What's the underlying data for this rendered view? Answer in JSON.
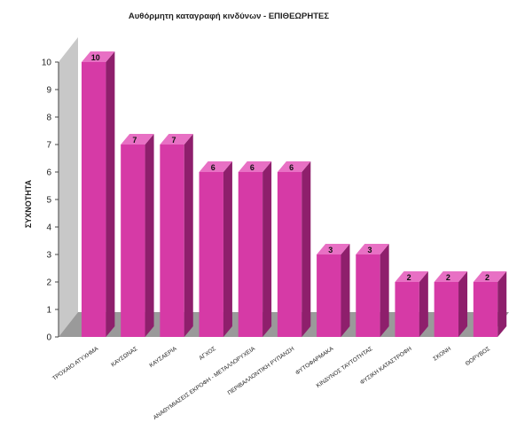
{
  "chart_data": {
    "type": "bar",
    "title": "Αυθόρμητη καταγραφή κινδύνων - ΕΠΙΘΕΩΡΗΤΕΣ",
    "xlabel": "",
    "ylabel": "ΣΥΧΝΟΤΗΤΑ",
    "ylim": [
      0,
      10
    ],
    "yticks": [
      0,
      1,
      2,
      3,
      4,
      5,
      6,
      7,
      8,
      9,
      10
    ],
    "categories": [
      "ΤΡΟΧΑΙΟ ΑΤΥΧΗΜΑ",
      "ΚΑΥΣΩΝΑΣ",
      "ΚΑΥΣΑΕΡΙΑ",
      "ΑΓΧΟΣ",
      "ΑΝΑΘΥΜΙΑΣΕΙΣ ΕΚΡΟΦΗ - ΜΕΤΑΛΛΟΡΥΧΕΙΑ",
      "ΠΕΡΙΒΑΛΛΟΝΤΙΚΗ ΡΥΠΑΝΣΗ",
      "ΦΥΤΟΦΑΡΜΑΚΑ",
      "ΚΙΝΔΥΝΟΣ ΤΑΥΤΟΤΗΤΑΣ",
      "ΦΥΣΙΚΗ ΚΑΤΑΣΤΡΟΦΗ",
      "ΣΚΟΝΗ",
      "ΘΟΡΥΒΟΣ"
    ],
    "values": [
      10,
      7,
      7,
      6,
      6,
      6,
      3,
      3,
      2,
      2,
      2
    ],
    "colors": {
      "bar_front": "#d63aa6",
      "bar_side": "#8e1f6c",
      "bar_top": "#e870c4",
      "floor": "#9a9a9a",
      "wall": "#c8c8c8"
    }
  }
}
